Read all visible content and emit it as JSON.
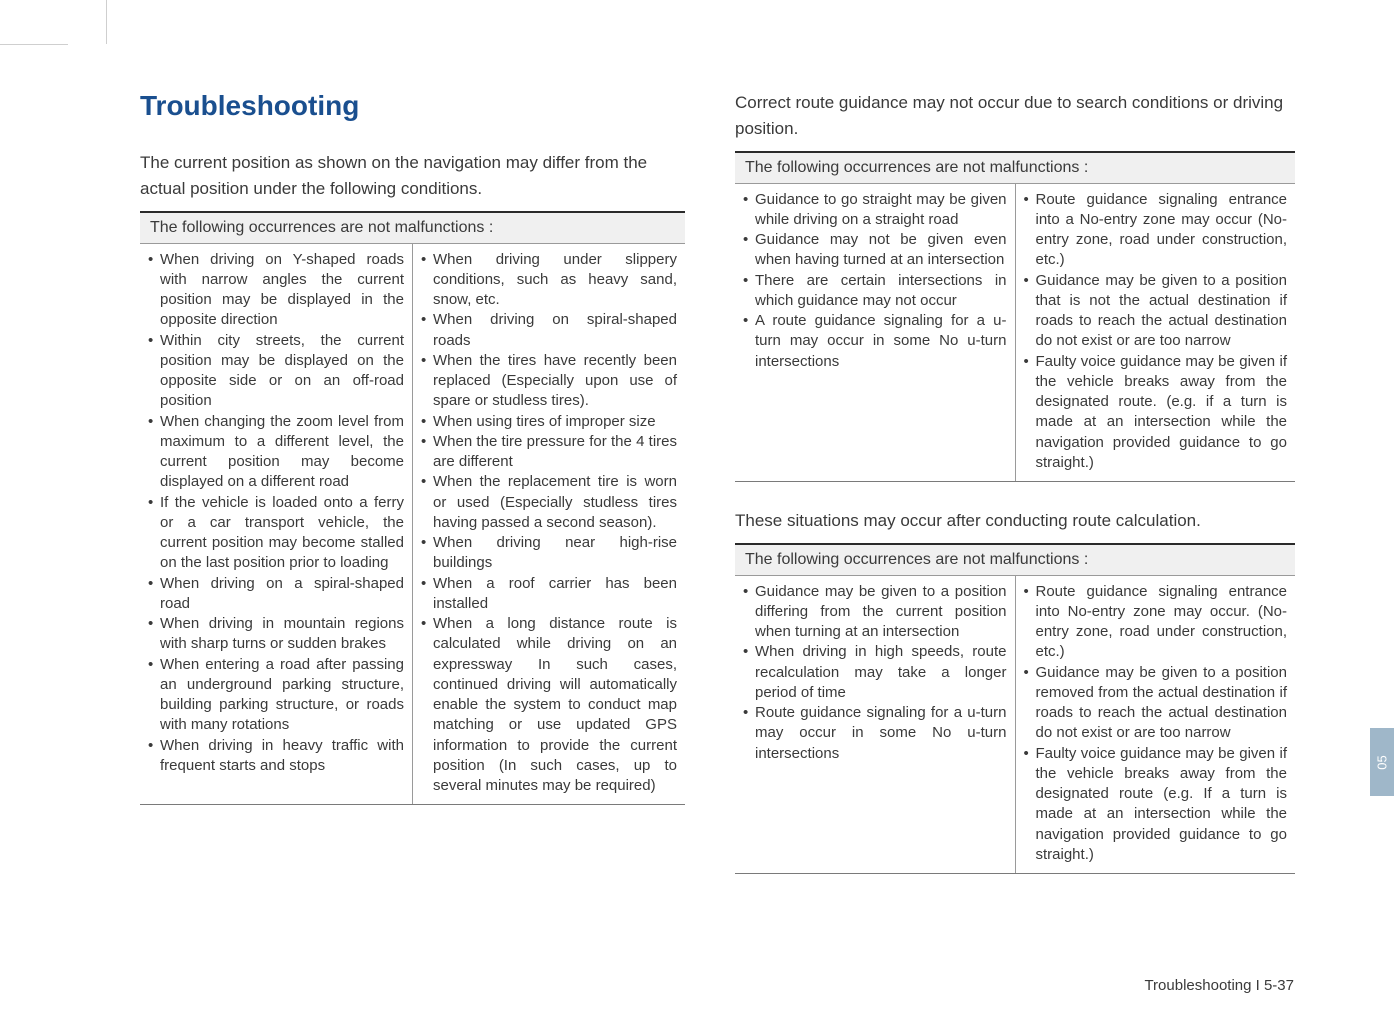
{
  "heading": "Troubleshooting",
  "left": {
    "intro": "The current position as shown on the navigation may differ from the actual position under the following conditions.",
    "table_header": "The following occurrences are not malfunctions :",
    "col1": [
      "When driving on Y-shaped roads with narrow angles the current position may be displayed in the opposite direction",
      "Within city streets, the current position may be displayed on the opposite side or on an off-road position",
      "When changing the zoom level from maximum to a different level, the current position may become displayed on a different road",
      "If the vehicle is loaded onto a ferry or a car transport vehicle, the current position may become stalled on the last position prior to loading",
      "When driving on a spiral-shaped road",
      "When driving in mountain regions with sharp turns or sudden brakes",
      "When entering a road after passing an underground parking structure, building parking structure, or roads with many rotations",
      "When driving in heavy traffic with frequent starts and stops"
    ],
    "col2": [
      "When driving under slippery conditions, such as heavy sand, snow, etc.",
      "When driving on spiral-shaped roads",
      "When the tires have recently been replaced (Especially upon use of spare or studless tires).",
      "When using tires of improper size",
      "When the tire pressure for the 4 tires are different",
      "When the replacement tire is worn or used (Especially studless tires having passed a second season).",
      "When driving near high-rise buildings",
      "When a roof carrier has been installed",
      "When a long distance route is calculated while driving on an expressway In such cases, continued driving will automatically enable the system to conduct map matching or use updated GPS information to provide the current position (In such cases, up to several minutes may be required)"
    ]
  },
  "right_top": {
    "intro": "Correct route guidance may not occur due to search conditions or driving position.",
    "table_header": "The following occurrences are not malfunctions :",
    "col1": [
      "Guidance to go straight may be given while driving on a straight road",
      "Guidance may not be given even when having turned at an intersection",
      "There are certain intersections in which guidance may not occur",
      "A route guidance signaling for a u-turn may occur in some No u-turn intersections"
    ],
    "col2": [
      "Route guidance signaling entrance into a No-entry zone may occur (No-entry zone, road under construction, etc.)",
      "Guidance may be given to a position that is not the actual destination if roads to reach the actual destination do not exist or are too narrow",
      "Faulty voice guidance may be given if the vehicle breaks away from the designated route. (e.g. if a turn is made at an intersection while the navigation provided guidance to go straight.)"
    ]
  },
  "right_bottom": {
    "intro": "These situations may occur after conducting route calculation.",
    "table_header": "The following occurrences are not malfunctions :",
    "col1": [
      "Guidance may be given to a position differing from the current position when turning at an intersection",
      "When driving in high speeds, route recalculation may take a longer period of time",
      "Route guidance signaling for a u-turn may occur in some No u-turn intersections"
    ],
    "col2": [
      "Route guidance signaling entrance into No-entry zone may occur. (No-entry zone, road under construction, etc.)",
      "Guidance may be given to a position removed from the actual destination if roads to reach the actual destination do not exist or are too narrow",
      "Faulty voice guidance may be given if the vehicle breaks away from the designated route (e.g. If a turn is made at an intersection while the navigation provided guidance to go straight.)"
    ]
  },
  "side_tab": "05",
  "footer": "Troubleshooting I 5-37"
}
